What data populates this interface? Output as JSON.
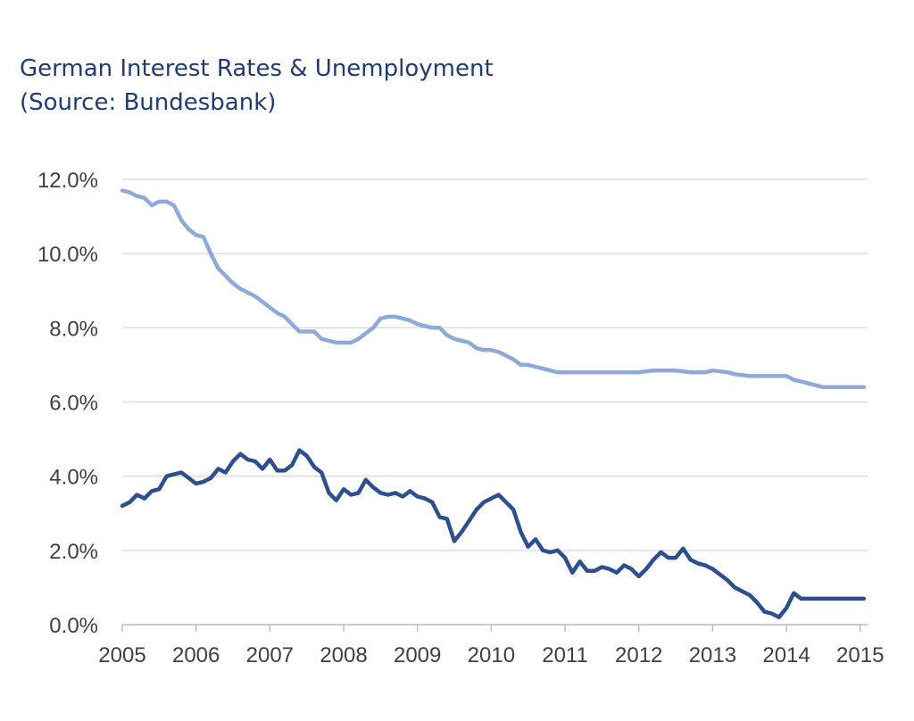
{
  "chart_data": {
    "type": "line",
    "title": "German Interest Rates & Unemployment",
    "subtitle": "(Source: Bundesbank)",
    "xlabel": "",
    "ylabel": "",
    "xlim": [
      2005,
      2015.1
    ],
    "ylim": [
      0,
      12
    ],
    "x_ticks": [
      "2005",
      "2006",
      "2007",
      "2008",
      "2009",
      "2010",
      "2011",
      "2012",
      "2013",
      "2014",
      "2015"
    ],
    "y_ticks": [
      "0.0%",
      "2.0%",
      "4.0%",
      "6.0%",
      "8.0%",
      "10.0%",
      "12.0%"
    ],
    "grid": "horizontal",
    "legend": "none",
    "series": [
      {
        "color": "#8eaadb",
        "x": [
          2005.0,
          2005.1,
          2005.2,
          2005.3,
          2005.4,
          2005.5,
          2005.6,
          2005.7,
          2005.8,
          2005.9,
          2006.0,
          2006.1,
          2006.2,
          2006.3,
          2006.4,
          2006.5,
          2006.6,
          2006.7,
          2006.8,
          2006.9,
          2007.0,
          2007.1,
          2007.2,
          2007.3,
          2007.4,
          2007.5,
          2007.6,
          2007.7,
          2007.8,
          2007.9,
          2008.0,
          2008.1,
          2008.2,
          2008.3,
          2008.4,
          2008.5,
          2008.6,
          2008.7,
          2008.8,
          2008.9,
          2009.0,
          2009.1,
          2009.2,
          2009.3,
          2009.4,
          2009.5,
          2009.6,
          2009.7,
          2009.8,
          2009.9,
          2010.0,
          2010.1,
          2010.2,
          2010.3,
          2010.4,
          2010.5,
          2010.6,
          2010.7,
          2010.8,
          2010.9,
          2011.0,
          2011.1,
          2011.2,
          2011.3,
          2011.5,
          2011.7,
          2011.9,
          2012.0,
          2012.2,
          2012.3,
          2012.5,
          2012.7,
          2012.9,
          2013.0,
          2013.2,
          2013.3,
          2013.5,
          2013.7,
          2013.9,
          2014.0,
          2014.1,
          2014.2,
          2014.3,
          2014.4,
          2014.5,
          2014.6,
          2014.8,
          2015.0,
          2015.05
        ],
        "y": [
          11.7,
          11.65,
          11.55,
          11.5,
          11.3,
          11.4,
          11.4,
          11.3,
          10.9,
          10.65,
          10.5,
          10.45,
          10.0,
          9.6,
          9.4,
          9.2,
          9.05,
          8.95,
          8.85,
          8.7,
          8.55,
          8.4,
          8.3,
          8.1,
          7.9,
          7.9,
          7.9,
          7.7,
          7.65,
          7.6,
          7.6,
          7.6,
          7.7,
          7.85,
          8.0,
          8.25,
          8.3,
          8.3,
          8.25,
          8.2,
          8.1,
          8.05,
          8.0,
          8.0,
          7.8,
          7.7,
          7.65,
          7.6,
          7.45,
          7.4,
          7.4,
          7.35,
          7.25,
          7.15,
          7.0,
          7.0,
          6.95,
          6.9,
          6.85,
          6.8,
          6.8,
          6.8,
          6.8,
          6.8,
          6.8,
          6.8,
          6.8,
          6.8,
          6.85,
          6.85,
          6.85,
          6.8,
          6.8,
          6.85,
          6.8,
          6.75,
          6.7,
          6.7,
          6.7,
          6.7,
          6.6,
          6.55,
          6.5,
          6.45,
          6.4,
          6.4,
          6.4,
          6.4,
          6.4
        ]
      },
      {
        "color": "#2e4f8f",
        "x": [
          2005.0,
          2005.1,
          2005.2,
          2005.3,
          2005.4,
          2005.5,
          2005.6,
          2005.7,
          2005.8,
          2005.9,
          2006.0,
          2006.1,
          2006.2,
          2006.3,
          2006.4,
          2006.5,
          2006.6,
          2006.7,
          2006.8,
          2006.9,
          2007.0,
          2007.1,
          2007.2,
          2007.3,
          2007.4,
          2007.5,
          2007.6,
          2007.7,
          2007.8,
          2007.9,
          2008.0,
          2008.1,
          2008.2,
          2008.3,
          2008.4,
          2008.5,
          2008.6,
          2008.7,
          2008.8,
          2008.9,
          2009.0,
          2009.1,
          2009.2,
          2009.3,
          2009.4,
          2009.5,
          2009.6,
          2009.7,
          2009.8,
          2009.9,
          2010.0,
          2010.1,
          2010.2,
          2010.3,
          2010.4,
          2010.5,
          2010.6,
          2010.7,
          2010.8,
          2010.9,
          2011.0,
          2011.1,
          2011.2,
          2011.3,
          2011.4,
          2011.5,
          2011.6,
          2011.7,
          2011.8,
          2011.9,
          2012.0,
          2012.1,
          2012.2,
          2012.3,
          2012.4,
          2012.5,
          2012.6,
          2012.7,
          2012.8,
          2012.9,
          2013.0,
          2013.1,
          2013.2,
          2013.3,
          2013.4,
          2013.5,
          2013.6,
          2013.7,
          2013.8,
          2013.9,
          2014.0,
          2014.1,
          2014.2,
          2014.3,
          2014.4,
          2014.5,
          2014.6,
          2014.7,
          2014.8,
          2014.9,
          2015.0,
          2015.05
        ],
        "y": [
          3.2,
          3.3,
          3.5,
          3.4,
          3.6,
          3.65,
          4.0,
          4.05,
          4.1,
          3.95,
          3.8,
          3.85,
          3.95,
          4.2,
          4.1,
          4.4,
          4.6,
          4.45,
          4.4,
          4.2,
          4.45,
          4.15,
          4.15,
          4.3,
          4.7,
          4.55,
          4.25,
          4.1,
          3.55,
          3.35,
          3.65,
          3.5,
          3.55,
          3.9,
          3.7,
          3.55,
          3.5,
          3.55,
          3.45,
          3.6,
          3.45,
          3.4,
          3.3,
          2.9,
          2.85,
          2.25,
          2.5,
          2.8,
          3.1,
          3.3,
          3.4,
          3.5,
          3.3,
          3.1,
          2.5,
          2.1,
          2.3,
          2.0,
          1.95,
          2.0,
          1.8,
          1.4,
          1.7,
          1.45,
          1.45,
          1.55,
          1.5,
          1.4,
          1.6,
          1.5,
          1.3,
          1.5,
          1.75,
          1.95,
          1.8,
          1.8,
          2.05,
          1.75,
          1.65,
          1.6,
          1.5,
          1.35,
          1.2,
          1.0,
          0.9,
          0.8,
          0.6,
          0.35,
          0.3,
          0.2,
          0.45,
          0.85,
          0.7,
          0.7,
          0.7,
          0.7,
          0.7,
          0.7,
          0.7,
          0.7,
          0.7,
          0.7
        ]
      }
    ]
  }
}
